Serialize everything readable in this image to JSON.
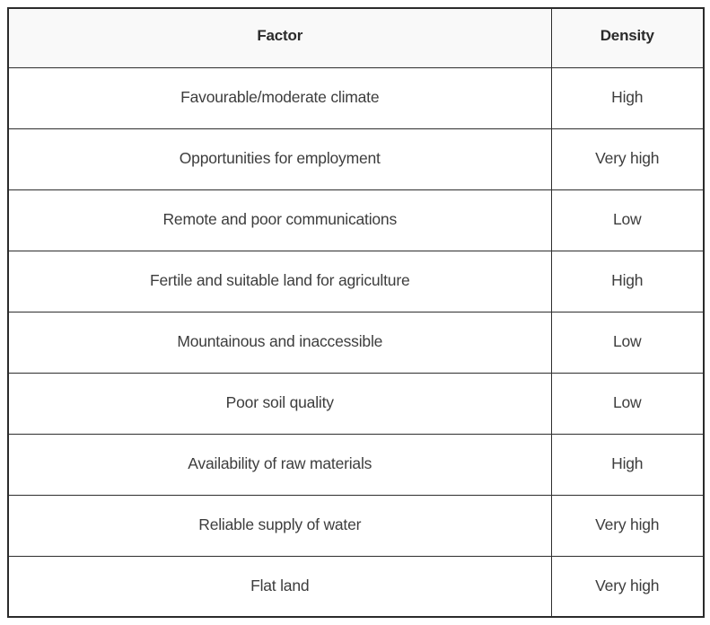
{
  "table": {
    "columns": [
      {
        "label": "Factor"
      },
      {
        "label": "Density"
      }
    ],
    "rows": [
      {
        "factor": "Favourable/moderate climate",
        "density": "High"
      },
      {
        "factor": "Opportunities for employment",
        "density": "Very high"
      },
      {
        "factor": "Remote and poor communications",
        "density": "Low"
      },
      {
        "factor": "Fertile and suitable land for agriculture",
        "density": "High"
      },
      {
        "factor": "Mountainous and inaccessible",
        "density": "Low"
      },
      {
        "factor": "Poor soil quality",
        "density": "Low"
      },
      {
        "factor": "Availability of raw materials",
        "density": "High"
      },
      {
        "factor": "Reliable supply of water",
        "density": "Very high"
      },
      {
        "factor": "Flat land",
        "density": "Very high"
      }
    ],
    "colors": {
      "border": "#2e2e2e",
      "outer_border": "#2b2b2b",
      "header_background": "#f9f9f9",
      "row_background": "#ffffff",
      "header_text": "#2b2b2b",
      "body_text": "#3d3d3d"
    }
  }
}
